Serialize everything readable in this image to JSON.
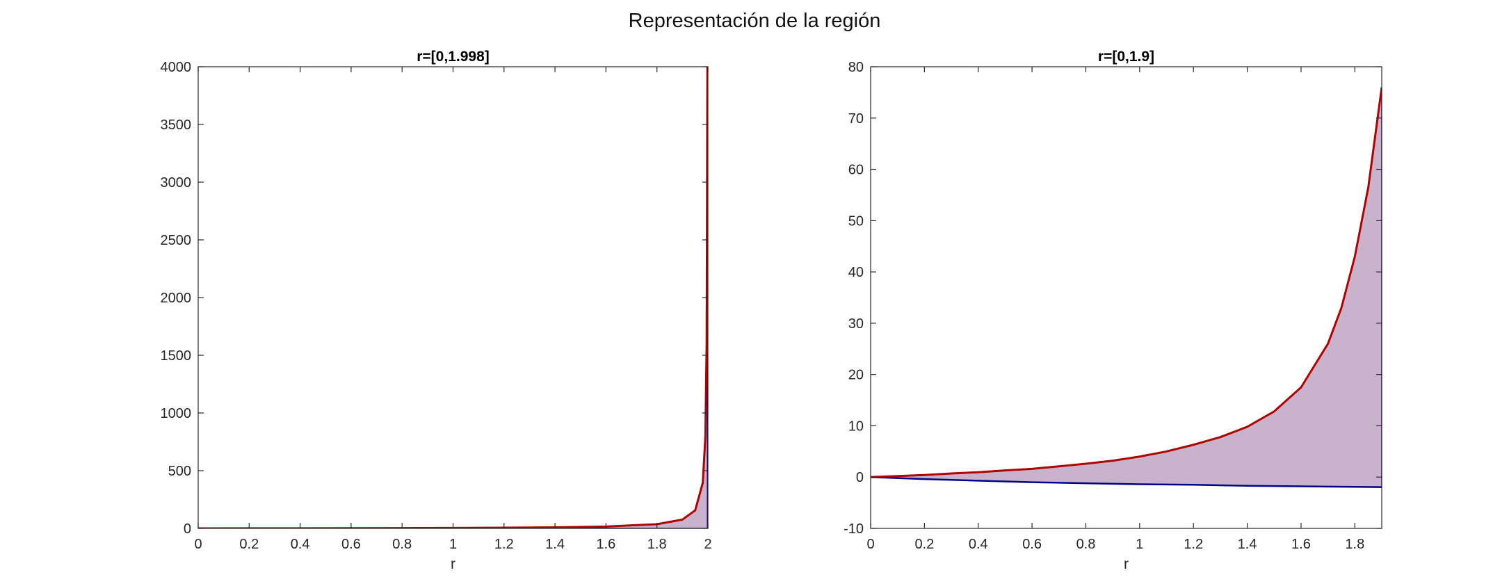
{
  "figure": {
    "title": "Representación de la región"
  },
  "colors": {
    "upper_curve": "#b00000",
    "lower_curve": "#00008b",
    "fill": "#c9b3cc",
    "axes": "#262626"
  },
  "chart_data": [
    {
      "type": "area",
      "title": "r=[0,1.998]",
      "xlabel": "r",
      "ylabel": "",
      "xlim": [
        0,
        2
      ],
      "ylim": [
        0,
        4000
      ],
      "xticks": [
        "0",
        "0.2",
        "0.4",
        "0.6",
        "0.8",
        "1",
        "1.2",
        "1.4",
        "1.6",
        "1.8",
        "2"
      ],
      "yticks": [
        "0",
        "500",
        "1000",
        "1500",
        "2000",
        "2500",
        "3000",
        "3500",
        "4000"
      ],
      "grid": false,
      "legend": "none",
      "series": [
        {
          "role": "upper",
          "x": [
            0,
            0.2,
            0.4,
            0.6,
            0.8,
            1.0,
            1.2,
            1.4,
            1.6,
            1.8,
            1.9,
            1.95,
            1.98,
            1.99,
            1.995,
            1.998
          ],
          "values": [
            0,
            0.4,
            0.8,
            1.5,
            2.4,
            4,
            6,
            9.3,
            16,
            36,
            76,
            156,
            396,
            796,
            1596,
            4000
          ]
        },
        {
          "role": "lower",
          "x": [
            0,
            0.2,
            0.4,
            0.6,
            0.8,
            1.0,
            1.2,
            1.4,
            1.6,
            1.8,
            1.998
          ],
          "values": [
            0,
            -0.4,
            -0.7,
            -1.0,
            -1.2,
            -1.4,
            -1.5,
            -1.7,
            -1.8,
            -1.9,
            -2.0
          ]
        }
      ]
    },
    {
      "type": "area",
      "title": "r=[0,1.9]",
      "xlabel": "r",
      "ylabel": "",
      "xlim": [
        0,
        1.9
      ],
      "ylim": [
        -10,
        80
      ],
      "xticks": [
        "0",
        "0.2",
        "0.4",
        "0.6",
        "0.8",
        "1",
        "1.2",
        "1.4",
        "1.6",
        "1.8"
      ],
      "yticks": [
        "-10",
        "0",
        "10",
        "20",
        "30",
        "40",
        "50",
        "60",
        "70",
        "80"
      ],
      "grid": false,
      "legend": "none",
      "series": [
        {
          "role": "upper",
          "x": [
            0,
            0.1,
            0.2,
            0.3,
            0.4,
            0.5,
            0.6,
            0.7,
            0.8,
            0.9,
            1.0,
            1.1,
            1.2,
            1.3,
            1.4,
            1.5,
            1.6,
            1.7,
            1.75,
            1.8,
            1.85,
            1.9
          ],
          "values": [
            0,
            0.2,
            0.4,
            0.7,
            0.95,
            1.3,
            1.6,
            2.1,
            2.6,
            3.2,
            4.0,
            5.0,
            6.3,
            7.8,
            9.8,
            12.8,
            17.5,
            26.0,
            33.0,
            43.0,
            56.5,
            76.0
          ]
        },
        {
          "role": "lower",
          "x": [
            0,
            0.2,
            0.4,
            0.6,
            0.8,
            1.0,
            1.2,
            1.4,
            1.6,
            1.8,
            1.9
          ],
          "values": [
            0,
            -0.4,
            -0.7,
            -1.0,
            -1.2,
            -1.4,
            -1.5,
            -1.7,
            -1.8,
            -1.9,
            -1.95
          ]
        }
      ]
    }
  ]
}
